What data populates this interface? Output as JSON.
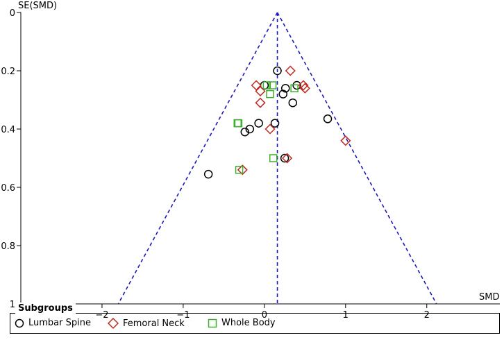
{
  "chart_data": {
    "type": "scatter",
    "subtype": "funnel-plot",
    "xlabel": "SMD",
    "ylabel": "SE(SMD)",
    "xlim": [
      -3.0,
      2.9
    ],
    "ylim": [
      0,
      1
    ],
    "y_inverted": true,
    "x_ticks": [
      -2,
      -1,
      0,
      1,
      2
    ],
    "y_ticks": [
      0,
      0.2,
      0.4,
      0.6,
      0.8,
      1
    ],
    "x_tick_labels": [
      "−2",
      "−1",
      "0",
      "1",
      "2"
    ],
    "y_tick_labels": [
      "0",
      "0.2",
      "0.4",
      "0.6",
      "0.8",
      "1"
    ],
    "pooled_estimate": 0.16,
    "funnel": {
      "apex": [
        0.16,
        0
      ],
      "base_left": [
        -1.8,
        1
      ],
      "base_right": [
        2.12,
        1
      ],
      "color": "#1a1ab8"
    },
    "legend": {
      "title": "Subgroups",
      "placement": "bottom"
    },
    "series": [
      {
        "name": "Lumbar Spine",
        "marker": "circle",
        "color": "#000000",
        "points": [
          [
            0.16,
            0.2
          ],
          [
            0.0,
            0.25
          ],
          [
            0.26,
            0.26
          ],
          [
            0.4,
            0.25
          ],
          [
            0.23,
            0.28
          ],
          [
            0.35,
            0.31
          ],
          [
            0.78,
            0.365
          ],
          [
            0.13,
            0.38
          ],
          [
            -0.07,
            0.38
          ],
          [
            -0.18,
            0.4
          ],
          [
            -0.24,
            0.41
          ],
          [
            0.25,
            0.5
          ],
          [
            -0.69,
            0.555
          ]
        ]
      },
      {
        "name": "Femoral Neck",
        "marker": "diamond",
        "color": "#c0281e",
        "points": [
          [
            0.32,
            0.2
          ],
          [
            -0.1,
            0.25
          ],
          [
            0.48,
            0.25
          ],
          [
            0.5,
            0.26
          ],
          [
            -0.05,
            0.27
          ],
          [
            -0.05,
            0.31
          ],
          [
            0.07,
            0.4
          ],
          [
            1.0,
            0.44
          ],
          [
            0.28,
            0.5
          ],
          [
            -0.27,
            0.54
          ]
        ]
      },
      {
        "name": "Whole Body",
        "marker": "square",
        "color": "#3cb02c",
        "points": [
          [
            0.03,
            0.25
          ],
          [
            0.1,
            0.25
          ],
          [
            0.37,
            0.26
          ],
          [
            0.07,
            0.28
          ],
          [
            -0.33,
            0.38
          ],
          [
            -0.32,
            0.38
          ],
          [
            0.11,
            0.5
          ],
          [
            -0.31,
            0.54
          ]
        ]
      }
    ]
  }
}
